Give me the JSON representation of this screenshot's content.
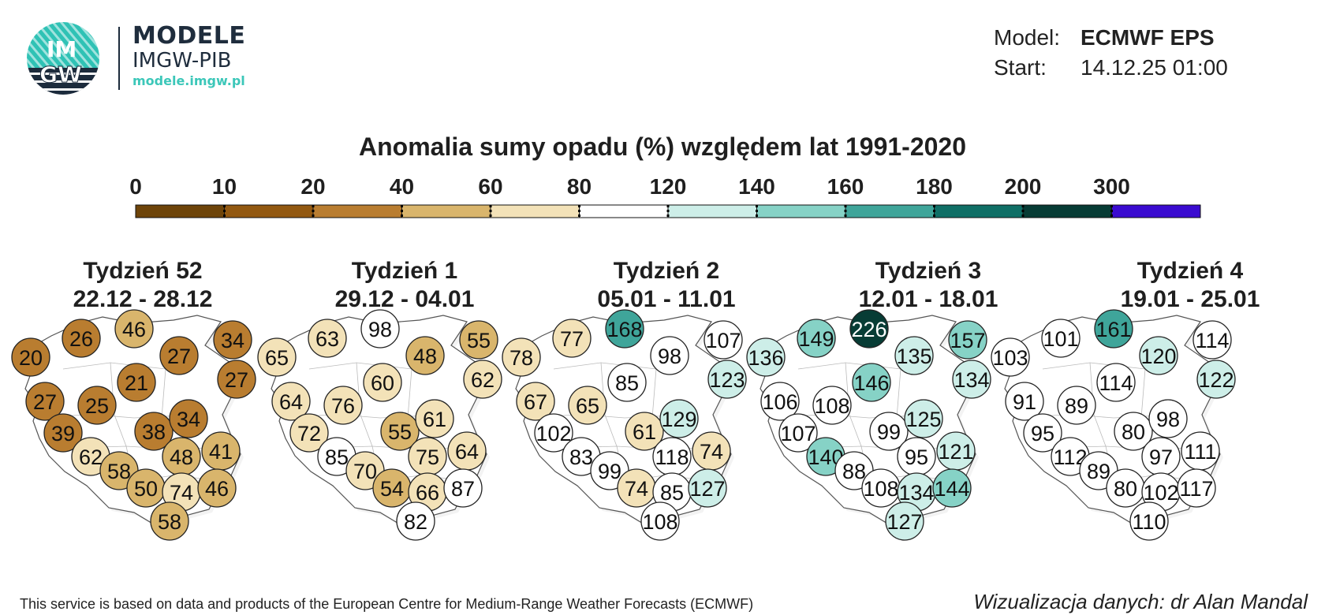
{
  "logo": {
    "badge_top": "IM",
    "badge_bottom": "GW",
    "name": "MODELE",
    "sub": "IMGW-PIB",
    "url": "modele.imgw.pl"
  },
  "meta": {
    "model_label": "Model:",
    "model_value": "ECMWF EPS",
    "start_label": "Start:",
    "start_value": "14.12.25 01:00"
  },
  "title": "Anomalia sumy opadu (%) względem lat 1991-2020",
  "legend": {
    "ticks": [
      "0",
      "10",
      "20",
      "40",
      "60",
      "80",
      "120",
      "140",
      "160",
      "180",
      "200",
      "300"
    ],
    "colors": [
      "#6e4409",
      "#925810",
      "#b97d30",
      "#d9b56c",
      "#f3e2b8",
      "#ffffff",
      "#cdeee8",
      "#86d2c6",
      "#3fa59a",
      "#0f6f66",
      "#073c35",
      "#3a0bd0"
    ]
  },
  "weeks": [
    {
      "name": "Tydzień 52",
      "dates": "22.12 - 28.12",
      "values": [
        20,
        26,
        46,
        27,
        34,
        27,
        21,
        27,
        25,
        38,
        34,
        39,
        62,
        58,
        48,
        41,
        50,
        74,
        46,
        58
      ]
    },
    {
      "name": "Tydzień 1",
      "dates": "29.12 - 04.01",
      "values": [
        65,
        63,
        98,
        48,
        55,
        62,
        60,
        64,
        76,
        55,
        61,
        72,
        85,
        70,
        75,
        64,
        54,
        66,
        87,
        82
      ]
    },
    {
      "name": "Tydzień 2",
      "dates": "05.01 - 11.01",
      "values": [
        78,
        77,
        168,
        98,
        107,
        123,
        85,
        67,
        65,
        61,
        129,
        102,
        83,
        99,
        118,
        74,
        74,
        85,
        127,
        108
      ]
    },
    {
      "name": "Tydzień 3",
      "dates": "12.01 - 18.01",
      "values": [
        136,
        149,
        226,
        135,
        157,
        134,
        146,
        106,
        108,
        99,
        125,
        107,
        140,
        88,
        95,
        121,
        108,
        134,
        144,
        127
      ]
    },
    {
      "name": "Tydzień 4",
      "dates": "19.01 - 25.01",
      "values": [
        103,
        101,
        161,
        120,
        114,
        122,
        114,
        91,
        89,
        80,
        98,
        95,
        112,
        89,
        97,
        111,
        80,
        102,
        117,
        110
      ]
    }
  ],
  "footer": {
    "left": "This service is based on data and products of the European Centre for Medium-Range Weather Forecasts (ECMWF)",
    "right": "Wizualizacja danych: dr Alan Mandal"
  }
}
